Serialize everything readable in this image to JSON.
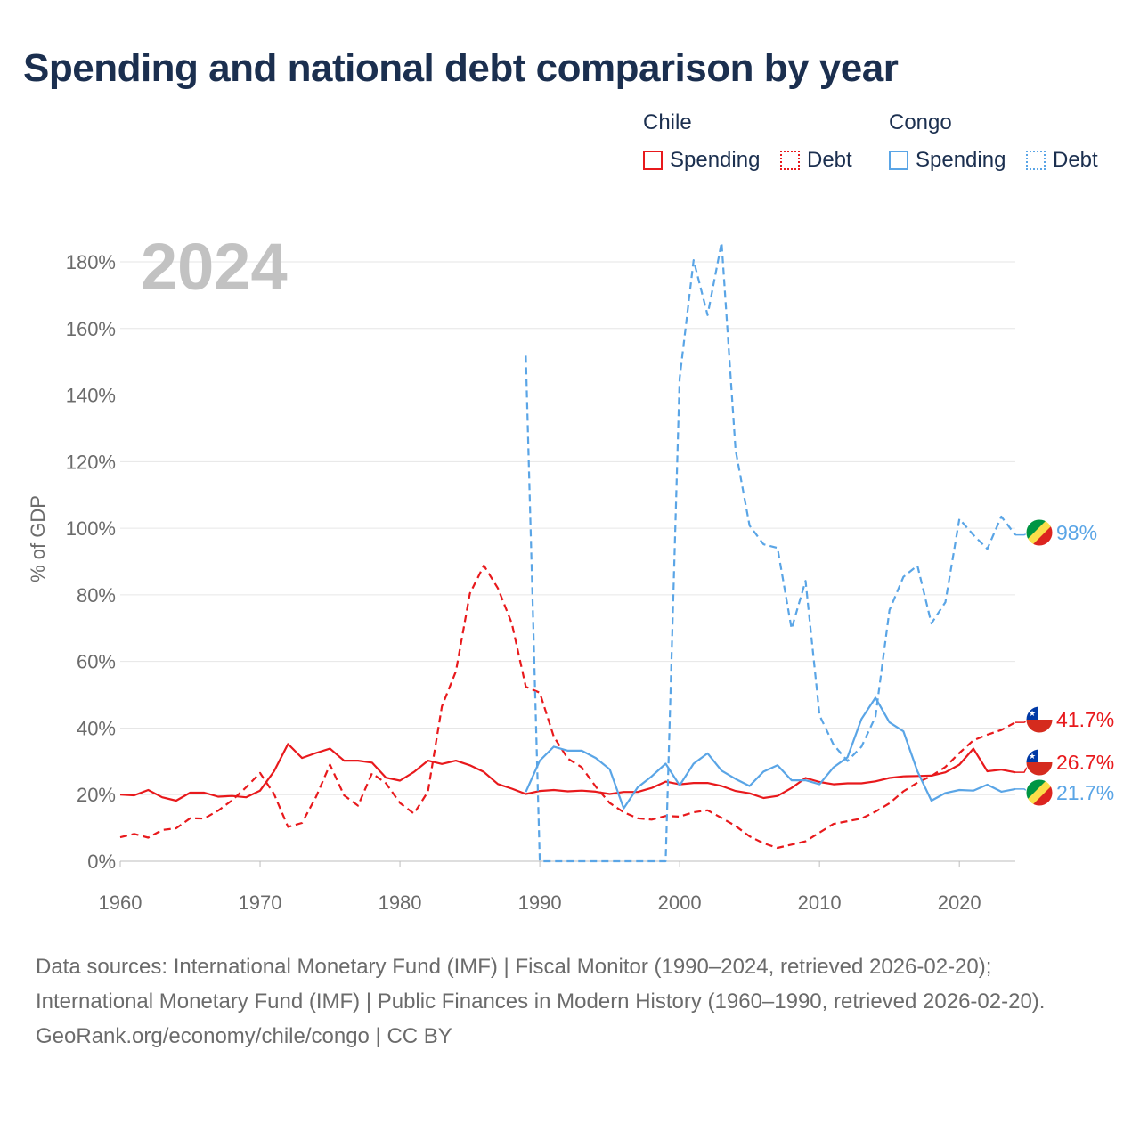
{
  "title": "Spending and national debt comparison by year",
  "legend": {
    "groups": [
      {
        "country": "Chile",
        "color": "#e8191c",
        "items": [
          "Spending",
          "Debt"
        ]
      },
      {
        "country": "Congo",
        "color": "#5aa5e6",
        "items": [
          "Spending",
          "Debt"
        ]
      }
    ]
  },
  "overlay_year": "2024",
  "footer": {
    "source_line": "Data sources: International Monetary Fund (IMF) | Fiscal Monitor (1990–2024, retrieved 2026-02-20); International Monetary Fund (IMF) | Public Finances in Modern History (1960–1990, retrieved 2026-02-20).",
    "credit_line": "GeoRank.org/economy/chile/congo | CC BY"
  },
  "chart_data": {
    "type": "line",
    "title": "Spending and national debt comparison by year",
    "xlabel": "",
    "ylabel": "% of GDP",
    "xlim": [
      1960,
      2024
    ],
    "ylim": [
      0,
      180
    ],
    "x_ticks": [
      1960,
      1970,
      1980,
      1990,
      2000,
      2010,
      2020
    ],
    "y_ticks": [
      0,
      20,
      40,
      60,
      80,
      100,
      120,
      140,
      160,
      180
    ],
    "y_tick_labels": [
      "0%",
      "20%",
      "40%",
      "60%",
      "80%",
      "100%",
      "120%",
      "140%",
      "160%",
      "180%"
    ],
    "grid": true,
    "legend": "top-right",
    "series": [
      {
        "name": "Chile Spending",
        "country": "Chile",
        "metric": "Spending",
        "color": "#e8191c",
        "style": "solid",
        "end_label": "26.7%",
        "points": [
          [
            1960,
            20
          ],
          [
            1961,
            19.8
          ],
          [
            1962,
            21.4
          ],
          [
            1963,
            19.2
          ],
          [
            1964,
            18.2
          ],
          [
            1965,
            20.6
          ],
          [
            1966,
            20.6
          ],
          [
            1967,
            19.4
          ],
          [
            1968,
            19.6
          ],
          [
            1969,
            19.2
          ],
          [
            1970,
            21.2
          ],
          [
            1971,
            27
          ],
          [
            1972,
            35.2
          ],
          [
            1973,
            31
          ],
          [
            1974,
            32.5
          ],
          [
            1975,
            33.8
          ],
          [
            1976,
            30.2
          ],
          [
            1977,
            30.2
          ],
          [
            1978,
            29.6
          ],
          [
            1979,
            25.1
          ],
          [
            1980,
            24.2
          ],
          [
            1981,
            26.8
          ],
          [
            1982,
            30.2
          ],
          [
            1983,
            29.2
          ],
          [
            1984,
            30.2
          ],
          [
            1985,
            28.8
          ],
          [
            1986,
            26.8
          ],
          [
            1987,
            23.2
          ],
          [
            1988,
            21.8
          ],
          [
            1989,
            20.2
          ],
          [
            1990,
            21.1
          ],
          [
            1991,
            21.4
          ],
          [
            1992,
            21
          ],
          [
            1993,
            21.2
          ],
          [
            1994,
            20.9
          ],
          [
            1995,
            20.2
          ],
          [
            1996,
            20.8
          ],
          [
            1997,
            20.8
          ],
          [
            1998,
            22
          ],
          [
            1999,
            23.9
          ],
          [
            2000,
            23.1
          ],
          [
            2001,
            23.5
          ],
          [
            2002,
            23.5
          ],
          [
            2003,
            22.6
          ],
          [
            2004,
            21.1
          ],
          [
            2005,
            20.4
          ],
          [
            2006,
            19
          ],
          [
            2007,
            19.6
          ],
          [
            2008,
            22
          ],
          [
            2009,
            25
          ],
          [
            2010,
            23.8
          ],
          [
            2011,
            23.1
          ],
          [
            2012,
            23.4
          ],
          [
            2013,
            23.4
          ],
          [
            2014,
            24
          ],
          [
            2015,
            25
          ],
          [
            2016,
            25.5
          ],
          [
            2017,
            25.6
          ],
          [
            2018,
            25.7
          ],
          [
            2019,
            26.7
          ],
          [
            2020,
            29
          ],
          [
            2021,
            33.8
          ],
          [
            2022,
            27
          ],
          [
            2023,
            27.5
          ],
          [
            2024,
            26.7
          ]
        ]
      },
      {
        "name": "Chile Debt",
        "country": "Chile",
        "metric": "Debt",
        "color": "#e8191c",
        "style": "dashed",
        "end_label": "41.7%",
        "points": [
          [
            1960,
            7.2
          ],
          [
            1961,
            8.2
          ],
          [
            1962,
            7.1
          ],
          [
            1963,
            9.4
          ],
          [
            1964,
            9.9
          ],
          [
            1965,
            12.9
          ],
          [
            1966,
            12.8
          ],
          [
            1967,
            15.2
          ],
          [
            1968,
            18.3
          ],
          [
            1969,
            22.2
          ],
          [
            1970,
            26.5
          ],
          [
            1971,
            20.2
          ],
          [
            1972,
            10.3
          ],
          [
            1973,
            11.5
          ],
          [
            1974,
            19.3
          ],
          [
            1975,
            29
          ],
          [
            1976,
            19.8
          ],
          [
            1977,
            16.7
          ],
          [
            1978,
            26.4
          ],
          [
            1979,
            23.4
          ],
          [
            1980,
            17.5
          ],
          [
            1981,
            14.3
          ],
          [
            1982,
            20.9
          ],
          [
            1983,
            46.5
          ],
          [
            1984,
            57
          ],
          [
            1985,
            80.4
          ],
          [
            1986,
            88.8
          ],
          [
            1987,
            82
          ],
          [
            1988,
            71.4
          ],
          [
            1989,
            52.4
          ],
          [
            1990,
            50.6
          ],
          [
            1991,
            37.4
          ],
          [
            1992,
            30.8
          ],
          [
            1993,
            28.2
          ],
          [
            1994,
            22.4
          ],
          [
            1995,
            17.5
          ],
          [
            1996,
            14.7
          ],
          [
            1997,
            12.9
          ],
          [
            1998,
            12.5
          ],
          [
            1999,
            13.6
          ],
          [
            2000,
            13.4
          ],
          [
            2001,
            14.7
          ],
          [
            2002,
            15.3
          ],
          [
            2003,
            13
          ],
          [
            2004,
            10.6
          ],
          [
            2005,
            7.5
          ],
          [
            2006,
            5.4
          ],
          [
            2007,
            4
          ],
          [
            2008,
            5
          ],
          [
            2009,
            6
          ],
          [
            2010,
            8.6
          ],
          [
            2011,
            11.2
          ],
          [
            2012,
            12
          ],
          [
            2013,
            12.8
          ],
          [
            2014,
            14.9
          ],
          [
            2015,
            17.4
          ],
          [
            2016,
            21
          ],
          [
            2017,
            23.6
          ],
          [
            2018,
            25.6
          ],
          [
            2019,
            28.3
          ],
          [
            2020,
            32.5
          ],
          [
            2021,
            36.3
          ],
          [
            2022,
            38
          ],
          [
            2023,
            39.4
          ],
          [
            2024,
            41.7
          ]
        ]
      },
      {
        "name": "Congo Spending",
        "country": "Congo",
        "metric": "Spending",
        "color": "#5aa5e6",
        "style": "solid",
        "end_label": "21.7%",
        "points": [
          [
            1989,
            20.8
          ],
          [
            1990,
            30.2
          ],
          [
            1991,
            34.4
          ],
          [
            1992,
            33.2
          ],
          [
            1993,
            33.2
          ],
          [
            1994,
            31
          ],
          [
            1995,
            27.6
          ],
          [
            1996,
            15.9
          ],
          [
            1997,
            22.2
          ],
          [
            1998,
            25.5
          ],
          [
            1999,
            29.3
          ],
          [
            2000,
            22.8
          ],
          [
            2001,
            29.3
          ],
          [
            2002,
            32.4
          ],
          [
            2003,
            27.2
          ],
          [
            2004,
            24.7
          ],
          [
            2005,
            22.6
          ],
          [
            2006,
            26.9
          ],
          [
            2007,
            28.8
          ],
          [
            2008,
            24.3
          ],
          [
            2009,
            24.3
          ],
          [
            2010,
            23.1
          ],
          [
            2011,
            28.2
          ],
          [
            2012,
            31.2
          ],
          [
            2013,
            42.7
          ],
          [
            2014,
            49.1
          ],
          [
            2015,
            41.7
          ],
          [
            2016,
            39
          ],
          [
            2017,
            27
          ],
          [
            2018,
            18.2
          ],
          [
            2019,
            20.5
          ],
          [
            2020,
            21.4
          ],
          [
            2021,
            21.2
          ],
          [
            2022,
            23
          ],
          [
            2023,
            20.9
          ],
          [
            2024,
            21.7
          ]
        ]
      },
      {
        "name": "Congo Debt",
        "country": "Congo",
        "metric": "Debt",
        "color": "#5aa5e6",
        "style": "dashed",
        "end_label": "98%",
        "points": [
          [
            1989,
            151.8
          ],
          [
            1990,
            0
          ],
          [
            1991,
            0
          ],
          [
            1992,
            0
          ],
          [
            1993,
            0
          ],
          [
            1994,
            0
          ],
          [
            1995,
            0
          ],
          [
            1996,
            0
          ],
          [
            1997,
            0
          ],
          [
            1998,
            0
          ],
          [
            1999,
            0
          ],
          [
            2000,
            145
          ],
          [
            2001,
            180.5
          ],
          [
            2002,
            164
          ],
          [
            2003,
            185.8
          ],
          [
            2004,
            123.5
          ],
          [
            2005,
            100.8
          ],
          [
            2006,
            95.2
          ],
          [
            2007,
            94.1
          ],
          [
            2008,
            69.8
          ],
          [
            2009,
            84.2
          ],
          [
            2010,
            43.8
          ],
          [
            2011,
            35
          ],
          [
            2012,
            30.1
          ],
          [
            2013,
            34.4
          ],
          [
            2014,
            43.4
          ],
          [
            2015,
            75.4
          ],
          [
            2016,
            85.4
          ],
          [
            2017,
            88.8
          ],
          [
            2018,
            71.4
          ],
          [
            2019,
            77.8
          ],
          [
            2020,
            102.8
          ],
          [
            2021,
            98
          ],
          [
            2022,
            93.8
          ],
          [
            2023,
            103.5
          ],
          [
            2024,
            98
          ]
        ]
      }
    ]
  }
}
